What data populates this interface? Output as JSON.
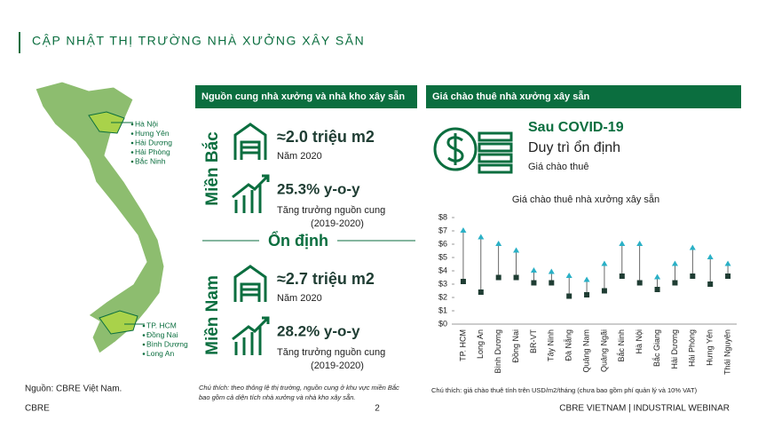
{
  "header": {
    "title": "CẬP NHẬT THỊ TRƯỜNG NHÀ XƯỞNG XÂY SẴN"
  },
  "map": {
    "north": [
      "Hà Nội",
      "Hưng Yên",
      "Hải Dương",
      "Hải Phòng",
      "Bắc Ninh"
    ],
    "south": [
      "TP. HCM",
      "Đồng Nai",
      "Bình Dương",
      "Long An"
    ],
    "source": "Nguồn: CBRE Việt Nam."
  },
  "supply": {
    "title": "Nguồn cung nhà xưởng và nhà kho xây sẵn",
    "north": {
      "region": "Miền Bắc",
      "area": "≈2.0 triệu m2",
      "year": "Năm 2020",
      "growth": "25.3% y-o-y",
      "growth_label": "Tăng trưởng nguồn cung",
      "period": "(2019-2020)"
    },
    "status": "Ổn định",
    "south": {
      "region": "Miền Nam",
      "area": "≈2.7 triệu m2",
      "year": "Năm 2020",
      "growth": "28.2% y-o-y",
      "growth_label": "Tăng trưởng nguồn cung",
      "period": "(2019-2020)"
    },
    "note": [
      "Chú thích: theo thông lệ thị trường, nguồn cung ở khu vực miền Bắc",
      "bao gồm cả diện tích nhà xưởng và nhà kho xây sẵn."
    ]
  },
  "rent": {
    "title": "Giá chào thuê nhà xưởng xây sẵn",
    "headline": "Sau COVID-19",
    "subhead": "Duy trì ổn định",
    "label": "Giá chào thuê",
    "note": "Chú thích: giá chào thuê tính trên USD/m2/tháng (chưa bao gồm phí quản lý và 10% VAT)"
  },
  "footer": {
    "left": "CBRE",
    "page": "2",
    "right": "CBRE VIETNAM  |  INDUSTRIAL WEBINAR"
  },
  "chart_data": {
    "type": "range",
    "title": "Giá chào thuê nhà xưởng xây sẵn",
    "categories": [
      "TP. HCM",
      "Long An",
      "Bình Dương",
      "Đồng Nai",
      "BR-VT",
      "Tây Ninh",
      "Đà Nẵng",
      "Quảng Nam",
      "Quảng Ngãi",
      "Bắc Ninh",
      "Hà Nội",
      "Bắc Giang",
      "Hải Dương",
      "Hải Phòng",
      "Hưng Yên",
      "Thái Nguyên"
    ],
    "series": [
      {
        "color": "#1f3d33",
        "values": [
          3.2,
          2.4,
          3.5,
          3.5,
          3.1,
          3.1,
          2.1,
          2.2,
          2.5,
          3.6,
          3.1,
          2.6,
          3.1,
          3.6,
          3.0,
          3.6
        ]
      },
      {
        "color": "#2ab0c6",
        "values": [
          7.0,
          6.5,
          6.0,
          5.5,
          4.0,
          3.9,
          3.6,
          3.3,
          4.5,
          6.0,
          6.0,
          3.5,
          4.5,
          5.7,
          5.0,
          4.5
        ]
      }
    ],
    "ylim": [
      0,
      8
    ],
    "yticks": [
      {
        "value": 0,
        "label": "$0"
      },
      {
        "value": 1,
        "label": "$1"
      },
      {
        "value": 2,
        "label": "$2"
      },
      {
        "value": 3,
        "label": "$3"
      },
      {
        "value": 4,
        "label": "$4"
      },
      {
        "value": 5,
        "label": "$5"
      },
      {
        "value": 6,
        "label": "$6"
      },
      {
        "value": 7,
        "label": "$7"
      },
      {
        "value": 8,
        "label": "$8"
      }
    ]
  }
}
